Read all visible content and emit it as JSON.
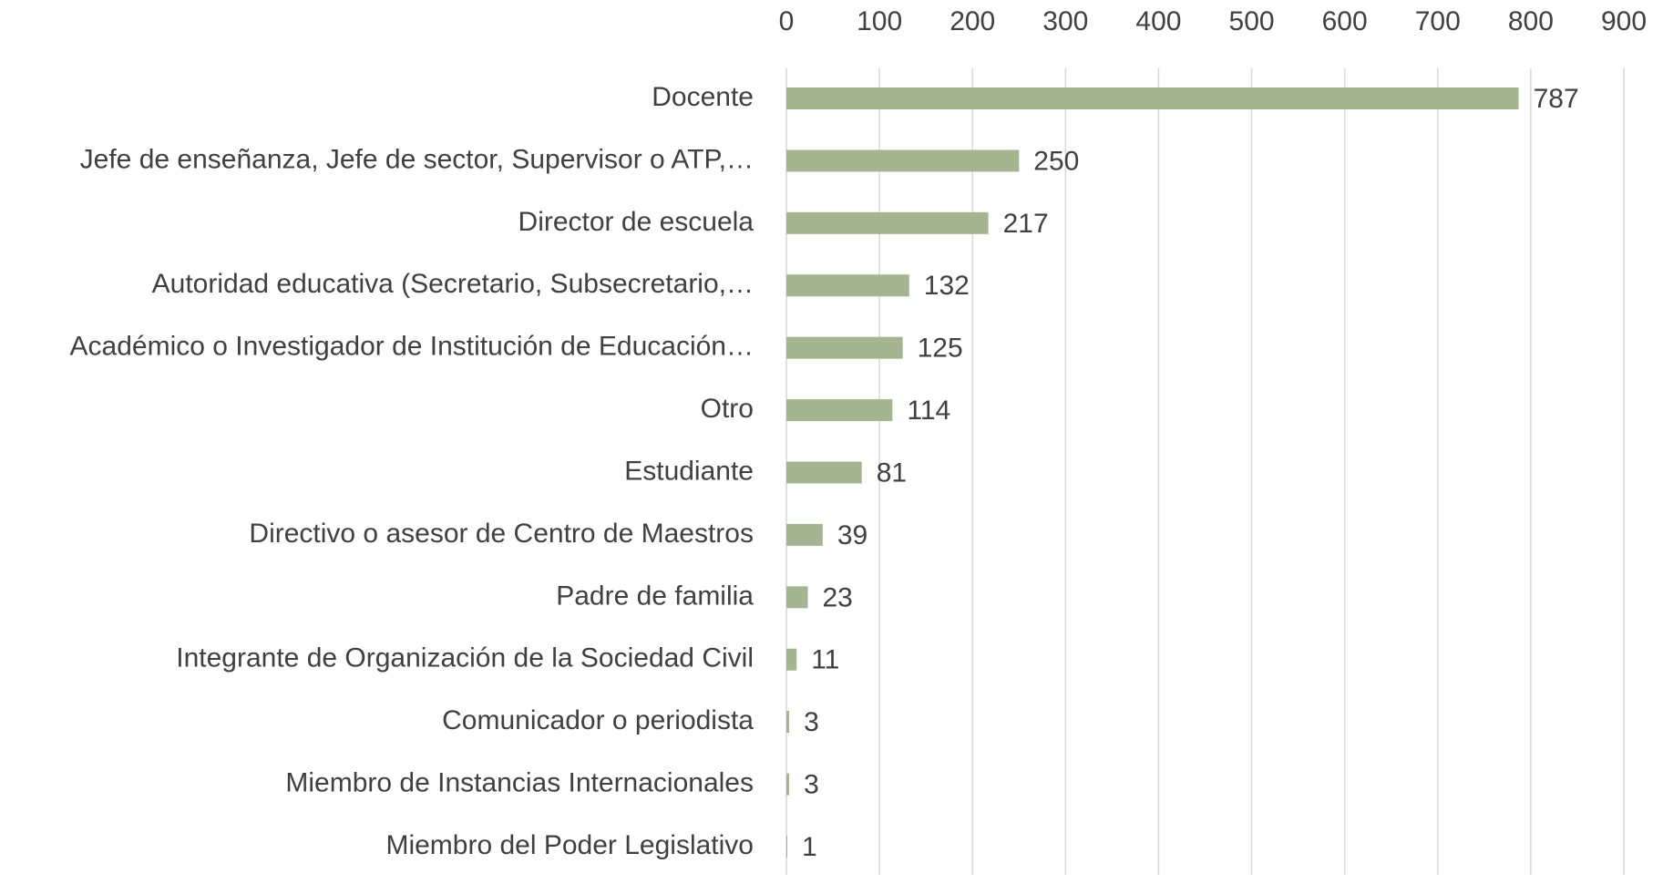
{
  "chart_data": {
    "type": "bar",
    "orientation": "horizontal",
    "categories": [
      "Docente",
      "Jefe de enseñanza, Jefe de sector, Supervisor o ATP,…",
      "Director de escuela",
      "Autoridad educativa (Secretario, Subsecretario,…",
      "Académico o Investigador de Institución de Educación…",
      "Otro",
      "Estudiante",
      "Directivo o asesor de Centro de Maestros",
      "Padre de familia",
      "Integrante de Organización de la Sociedad Civil",
      "Comunicador o periodista",
      "Miembro de Instancias Internacionales",
      "Miembro del Poder Legislativo"
    ],
    "values": [
      787,
      250,
      217,
      132,
      125,
      114,
      81,
      39,
      23,
      11,
      3,
      3,
      1
    ],
    "color": "#a5b592",
    "xlim": [
      0,
      900
    ],
    "xticks": [
      0,
      100,
      200,
      300,
      400,
      500,
      600,
      700,
      800,
      900
    ],
    "grid": true
  }
}
